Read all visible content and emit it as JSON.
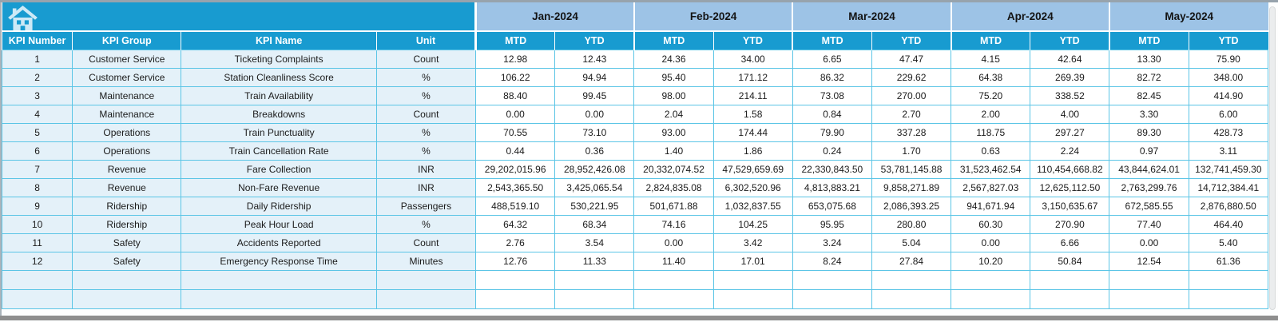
{
  "table": {
    "icons": {
      "corner": "home-icon"
    },
    "months": [
      "Jan-2024",
      "Feb-2024",
      "Mar-2024",
      "Apr-2024",
      "May-2024"
    ],
    "sub_headers": [
      "MTD",
      "YTD"
    ],
    "left_headers": [
      "KPI Number",
      "KPI Group",
      "KPI Name",
      "Unit"
    ],
    "colors": {
      "teal": "#189BD0",
      "month_blue": "#9DC3E6",
      "row_blue": "#E4F1F9",
      "grid_teal": "#5BC5E6",
      "icon_light": "#CDE9F6"
    },
    "rows": [
      {
        "num": "1",
        "group": "Customer Service",
        "name": "Ticketing Complaints",
        "unit": "Count",
        "values": [
          "12.98",
          "12.43",
          "24.36",
          "34.00",
          "6.65",
          "47.47",
          "4.15",
          "42.64",
          "13.30",
          "75.90"
        ]
      },
      {
        "num": "2",
        "group": "Customer Service",
        "name": "Station Cleanliness Score",
        "unit": "%",
        "values": [
          "106.22",
          "94.94",
          "95.40",
          "171.12",
          "86.32",
          "229.62",
          "64.38",
          "269.39",
          "82.72",
          "348.00"
        ]
      },
      {
        "num": "3",
        "group": "Maintenance",
        "name": "Train Availability",
        "unit": "%",
        "values": [
          "88.40",
          "99.45",
          "98.00",
          "214.11",
          "73.08",
          "270.00",
          "75.20",
          "338.52",
          "82.45",
          "414.90"
        ]
      },
      {
        "num": "4",
        "group": "Maintenance",
        "name": "Breakdowns",
        "unit": "Count",
        "values": [
          "0.00",
          "0.00",
          "2.04",
          "1.58",
          "0.84",
          "2.70",
          "2.00",
          "4.00",
          "3.30",
          "6.00"
        ]
      },
      {
        "num": "5",
        "group": "Operations",
        "name": "Train Punctuality",
        "unit": "%",
        "values": [
          "70.55",
          "73.10",
          "93.00",
          "174.44",
          "79.90",
          "337.28",
          "118.75",
          "297.27",
          "89.30",
          "428.73"
        ]
      },
      {
        "num": "6",
        "group": "Operations",
        "name": "Train Cancellation Rate",
        "unit": "%",
        "values": [
          "0.44",
          "0.36",
          "1.40",
          "1.86",
          "0.24",
          "1.70",
          "0.63",
          "2.24",
          "0.97",
          "3.11"
        ]
      },
      {
        "num": "7",
        "group": "Revenue",
        "name": "Fare Collection",
        "unit": "INR",
        "values": [
          "29,202,015.96",
          "28,952,426.08",
          "20,332,074.52",
          "47,529,659.69",
          "22,330,843.50",
          "53,781,145.88",
          "31,523,462.54",
          "110,454,668.82",
          "43,844,624.01",
          "132,741,459.30"
        ]
      },
      {
        "num": "8",
        "group": "Revenue",
        "name": "Non-Fare Revenue",
        "unit": "INR",
        "values": [
          "2,543,365.50",
          "3,425,065.54",
          "2,824,835.08",
          "6,302,520.96",
          "4,813,883.21",
          "9,858,271.89",
          "2,567,827.03",
          "12,625,112.50",
          "2,763,299.76",
          "14,712,384.41"
        ]
      },
      {
        "num": "9",
        "group": "Ridership",
        "name": "Daily Ridership",
        "unit": "Passengers",
        "values": [
          "488,519.10",
          "530,221.95",
          "501,671.88",
          "1,032,837.55",
          "653,075.68",
          "2,086,393.25",
          "941,671.94",
          "3,150,635.67",
          "672,585.55",
          "2,876,880.50"
        ]
      },
      {
        "num": "10",
        "group": "Ridership",
        "name": "Peak Hour Load",
        "unit": "%",
        "values": [
          "64.32",
          "68.34",
          "74.16",
          "104.25",
          "95.95",
          "280.80",
          "60.30",
          "270.90",
          "77.40",
          "464.40"
        ]
      },
      {
        "num": "11",
        "group": "Safety",
        "name": "Accidents Reported",
        "unit": "Count",
        "values": [
          "2.76",
          "3.54",
          "0.00",
          "3.42",
          "3.24",
          "5.04",
          "0.00",
          "6.66",
          "0.00",
          "5.40"
        ]
      },
      {
        "num": "12",
        "group": "Safety",
        "name": "Emergency Response Time",
        "unit": "Minutes",
        "values": [
          "12.76",
          "11.33",
          "11.40",
          "17.01",
          "8.24",
          "27.84",
          "10.20",
          "50.84",
          "12.54",
          "61.36"
        ]
      }
    ],
    "empty_row_count": 2
  }
}
